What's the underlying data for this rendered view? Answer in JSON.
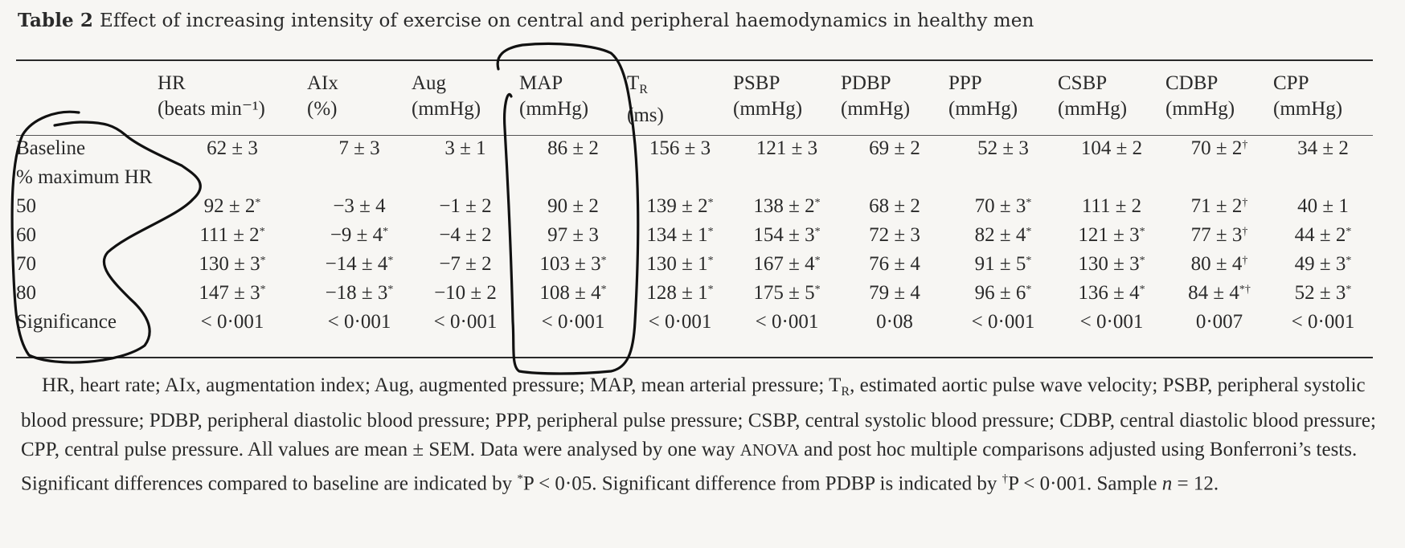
{
  "caption": {
    "label": "Table 2",
    "text": "Effect of increasing intensity of exercise on central and peripheral haemodynamics in healthy men"
  },
  "columns": [
    {
      "name": "HR",
      "unit": "(beats min⁻¹)"
    },
    {
      "name": "AIx",
      "unit": "(%)"
    },
    {
      "name": "Aug",
      "unit": "(mmHg)"
    },
    {
      "name": "MAP",
      "unit": "(mmHg)"
    },
    {
      "name": "T",
      "name_sub": "R",
      "unit": "(ms)"
    },
    {
      "name": "PSBP",
      "unit": "(mmHg)"
    },
    {
      "name": "PDBP",
      "unit": "(mmHg)"
    },
    {
      "name": "PPP",
      "unit": "(mmHg)"
    },
    {
      "name": "CSBP",
      "unit": "(mmHg)"
    },
    {
      "name": "CDBP",
      "unit": "(mmHg)"
    },
    {
      "name": "CPP",
      "unit": "(mmHg)"
    }
  ],
  "rows": [
    {
      "label": "Baseline",
      "cells": [
        {
          "v": "62 ± 3"
        },
        {
          "v": "7 ± 3"
        },
        {
          "v": "3 ± 1"
        },
        {
          "v": "86 ± 2"
        },
        {
          "v": "156 ± 3"
        },
        {
          "v": "121 ± 3"
        },
        {
          "v": "69 ± 2"
        },
        {
          "v": "52 ± 3"
        },
        {
          "v": "104 ± 2"
        },
        {
          "v": "70 ± 2",
          "sup": "†"
        },
        {
          "v": "34 ± 2"
        }
      ]
    },
    {
      "label": "% maximum HR",
      "cells": []
    },
    {
      "label": "50",
      "cells": [
        {
          "v": "92 ± 2",
          "sup": "*"
        },
        {
          "v": "−3 ± 4"
        },
        {
          "v": "−1 ± 2"
        },
        {
          "v": "90 ± 2"
        },
        {
          "v": "139 ± 2",
          "sup": "*"
        },
        {
          "v": "138 ± 2",
          "sup": "*"
        },
        {
          "v": "68 ± 2"
        },
        {
          "v": "70 ± 3",
          "sup": "*"
        },
        {
          "v": "111 ± 2"
        },
        {
          "v": "71 ± 2",
          "sup": "†"
        },
        {
          "v": "40 ± 1"
        }
      ]
    },
    {
      "label": "60",
      "cells": [
        {
          "v": "111 ± 2",
          "sup": "*"
        },
        {
          "v": "−9 ± 4",
          "sup": "*"
        },
        {
          "v": "−4 ± 2"
        },
        {
          "v": "97 ± 3"
        },
        {
          "v": "134 ± 1",
          "sup": "*"
        },
        {
          "v": "154 ± 3",
          "sup": "*"
        },
        {
          "v": "72 ± 3"
        },
        {
          "v": "82 ± 4",
          "sup": "*"
        },
        {
          "v": "121 ± 3",
          "sup": "*"
        },
        {
          "v": "77 ± 3",
          "sup": "†"
        },
        {
          "v": "44 ± 2",
          "sup": "*"
        }
      ]
    },
    {
      "label": "70",
      "cells": [
        {
          "v": "130 ± 3",
          "sup": "*"
        },
        {
          "v": "−14 ± 4",
          "sup": "*"
        },
        {
          "v": "−7 ± 2"
        },
        {
          "v": "103 ± 3",
          "sup": "*"
        },
        {
          "v": "130 ± 1",
          "sup": "*"
        },
        {
          "v": "167 ± 4",
          "sup": "*"
        },
        {
          "v": "76 ± 4"
        },
        {
          "v": "91 ± 5",
          "sup": "*"
        },
        {
          "v": "130 ± 3",
          "sup": "*"
        },
        {
          "v": "80 ± 4",
          "sup": "†"
        },
        {
          "v": "49 ± 3",
          "sup": "*"
        }
      ]
    },
    {
      "label": "80",
      "cells": [
        {
          "v": "147 ± 3",
          "sup": "*"
        },
        {
          "v": "−18 ± 3",
          "sup": "*"
        },
        {
          "v": "−10 ± 2"
        },
        {
          "v": "108 ± 4",
          "sup": "*"
        },
        {
          "v": "128 ± 1",
          "sup": "*"
        },
        {
          "v": "175 ± 5",
          "sup": "*"
        },
        {
          "v": "79 ± 4"
        },
        {
          "v": "96 ± 6",
          "sup": "*"
        },
        {
          "v": "136 ± 4",
          "sup": "*"
        },
        {
          "v": "84 ± 4",
          "sup": "*†"
        },
        {
          "v": "52 ± 3",
          "sup": "*"
        }
      ]
    },
    {
      "label": "Significance",
      "cells": [
        {
          "v": "< 0·001"
        },
        {
          "v": "< 0·001"
        },
        {
          "v": "< 0·001"
        },
        {
          "v": "< 0·001"
        },
        {
          "v": "< 0·001"
        },
        {
          "v": "< 0·001"
        },
        {
          "v": "0·08"
        },
        {
          "v": "< 0·001"
        },
        {
          "v": "< 0·001"
        },
        {
          "v": "0·007"
        },
        {
          "v": "< 0·001"
        }
      ]
    }
  ],
  "footnote": {
    "p1": "HR, heart rate; AIx, augmentation index; Aug, augmented pressure; MAP, mean arterial pressure; T",
    "p1_sub": "R",
    "p2": ", estimated aortic pulse wave velocity; PSBP, peripheral systolic blood pressure; PDBP, peripheral diastolic blood pressure; PPP, peripheral pulse pressure; CSBP, central systolic blood pressure; CDBP, central diastolic blood pressure; CPP, central pulse pressure. All values are mean ± SEM. Data were analysed by one way ",
    "anova": "ANOVA",
    "p3": " and post hoc multiple comparisons adjusted using Bonferroni’s tests. Significant differences compared to baseline are indicated by ",
    "sup1": "*",
    "p4": "P < 0·05. Significant difference from PDBP is indicated by ",
    "sup2": "†",
    "p5": "P < 0·001. Sample ",
    "n_italic": "n",
    "p6": " = 12."
  }
}
